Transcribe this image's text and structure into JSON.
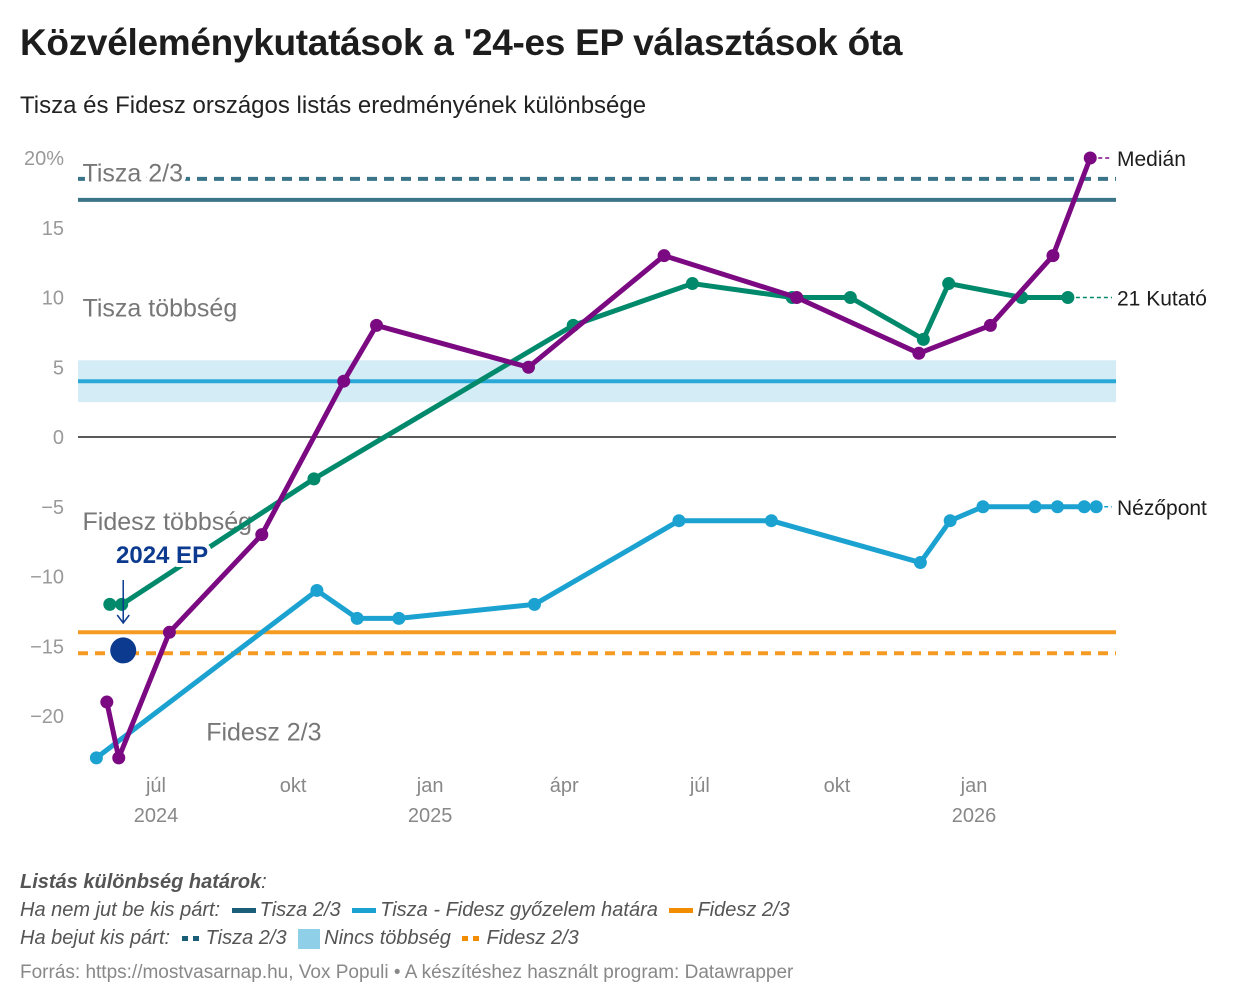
{
  "title": "Közvéleménykutatások a '24-es EP választások óta",
  "subtitle": "Tisza és Fidesz országos listás eredményének különbsége",
  "chart_data": {
    "type": "line",
    "title": "Közvéleménykutatások a '24-es EP választások óta",
    "subtitle": "Tisza és Fidesz országos listás eredményének különbsége",
    "ylim": [
      -23,
      20
    ],
    "xlim": [
      "2024-05-10",
      "2026-04-06"
    ],
    "y_ticks": [
      {
        "v": 20,
        "label": "20%"
      },
      {
        "v": 15,
        "label": "15"
      },
      {
        "v": 10,
        "label": "10"
      },
      {
        "v": 5,
        "label": "5"
      },
      {
        "v": 0,
        "label": "0"
      },
      {
        "v": -5,
        "label": "−5"
      },
      {
        "v": -10,
        "label": "−10"
      },
      {
        "v": -15,
        "label": "−15"
      },
      {
        "v": -20,
        "label": "−20"
      }
    ],
    "x_ticks": [
      {
        "date": "2024-07-01",
        "label": "júl",
        "year": "2024"
      },
      {
        "date": "2024-10-01",
        "label": "okt",
        "year": ""
      },
      {
        "date": "2025-01-01",
        "label": "jan",
        "year": "2025"
      },
      {
        "date": "2025-04-01",
        "label": "ápr",
        "year": ""
      },
      {
        "date": "2025-07-01",
        "label": "júl",
        "year": ""
      },
      {
        "date": "2025-10-01",
        "label": "okt",
        "year": ""
      },
      {
        "date": "2026-01-01",
        "label": "jan",
        "year": "2026"
      }
    ],
    "grid": false,
    "series": [
      {
        "name": "21 Kutató",
        "color": "#00896b",
        "points": [
          [
            "2024-05-31",
            -12
          ],
          [
            "2024-06-08",
            -12
          ],
          [
            "2024-10-15",
            -3
          ],
          [
            "2025-04-07",
            8
          ],
          [
            "2025-06-26",
            11
          ],
          [
            "2025-09-01",
            10
          ],
          [
            "2025-10-10",
            10
          ],
          [
            "2025-11-28",
            7
          ],
          [
            "2025-12-15",
            11
          ],
          [
            "2026-02-02",
            10
          ],
          [
            "2026-03-05",
            10
          ]
        ]
      },
      {
        "name": "Nézőpont",
        "color": "#1ba2d0",
        "points": [
          [
            "2024-05-22",
            -23
          ],
          [
            "2024-10-17",
            -11
          ],
          [
            "2024-11-13",
            -13
          ],
          [
            "2024-12-11",
            -13
          ],
          [
            "2025-03-12",
            -12
          ],
          [
            "2025-06-17",
            -6
          ],
          [
            "2025-08-18",
            -6
          ],
          [
            "2025-11-26",
            -9
          ],
          [
            "2025-12-16",
            -6
          ],
          [
            "2026-01-07",
            -5
          ],
          [
            "2026-02-11",
            -5
          ],
          [
            "2026-02-26",
            -5
          ],
          [
            "2026-03-16",
            -5
          ],
          [
            "2026-03-24",
            -5
          ]
        ]
      },
      {
        "name": "Medián",
        "color": "#7b0a82",
        "points": [
          [
            "2024-05-29",
            -19
          ],
          [
            "2024-06-06",
            -23
          ],
          [
            "2024-07-10",
            -14
          ],
          [
            "2024-09-10",
            -7
          ],
          [
            "2024-11-04",
            4
          ],
          [
            "2024-11-26",
            8
          ],
          [
            "2025-03-08",
            5
          ],
          [
            "2025-06-07",
            13
          ],
          [
            "2025-09-04",
            10
          ],
          [
            "2025-11-25",
            6
          ],
          [
            "2026-01-12",
            8
          ],
          [
            "2026-02-23",
            13
          ],
          [
            "2026-03-20",
            20
          ]
        ]
      }
    ],
    "reference_lines": [
      {
        "name": "Tisza 2/3 (kis párt bejut)",
        "value": 18.5,
        "style": "dashed",
        "color": "#3a7489"
      },
      {
        "name": "Tisza 2/3",
        "value": 17,
        "style": "solid",
        "color": "#3a7489"
      },
      {
        "name": "Tisza - Fidesz győzelem határa",
        "value": 4,
        "style": "solid",
        "color": "#2aa8d6"
      },
      {
        "name": "Fidesz 2/3",
        "value": -14,
        "style": "solid",
        "color": "#f59a23"
      },
      {
        "name": "Fidesz 2/3 (kis párt bejut)",
        "value": -15.5,
        "style": "dashed",
        "color": "#f59a23"
      }
    ],
    "band": {
      "name": "Nincs többség",
      "from": 2.5,
      "to": 5.5,
      "color": "#d4ecf6"
    },
    "zone_labels": [
      {
        "text": "Tisza 2/3",
        "v": 18.9,
        "date": "2024-05-10"
      },
      {
        "text": "Tisza többség",
        "v": 9.2,
        "date": "2024-05-10"
      },
      {
        "text": "Fidesz többség",
        "v": -6.1,
        "date": "2024-05-10"
      },
      {
        "text": "Fidesz 2/3",
        "v": -21.2,
        "date": "2024-08-01"
      }
    ],
    "annotation": {
      "text": "2024 EP",
      "date": "2024-06-09",
      "value": -15.3,
      "color": "#0b3a8f"
    }
  },
  "legend": {
    "heading": "Listás különbség határok",
    "row1_label": "Ha nem jut be kis párt:",
    "row1": [
      {
        "label": "Tisza 2/3",
        "color": "#1b5e78",
        "style": "line"
      },
      {
        "label": "Tisza - Fidesz győzelem határa",
        "color": "#1ba2d0",
        "style": "line"
      },
      {
        "label": "Fidesz 2/3",
        "color": "#f28c00",
        "style": "line"
      }
    ],
    "row2_label": "Ha bejut kis párt:",
    "row2": [
      {
        "label": "Tisza 2/3",
        "color": "#1b5e78",
        "style": "dash"
      },
      {
        "label": "Nincs többség",
        "color": "#8fd0e8",
        "style": "box"
      },
      {
        "label": "Fidesz 2/3",
        "color": "#f28c00",
        "style": "dash"
      }
    ]
  },
  "source": "Forrás: https://mostvasarnap.hu, Vox Populi • A készítéshez használt program: Datawrapper"
}
